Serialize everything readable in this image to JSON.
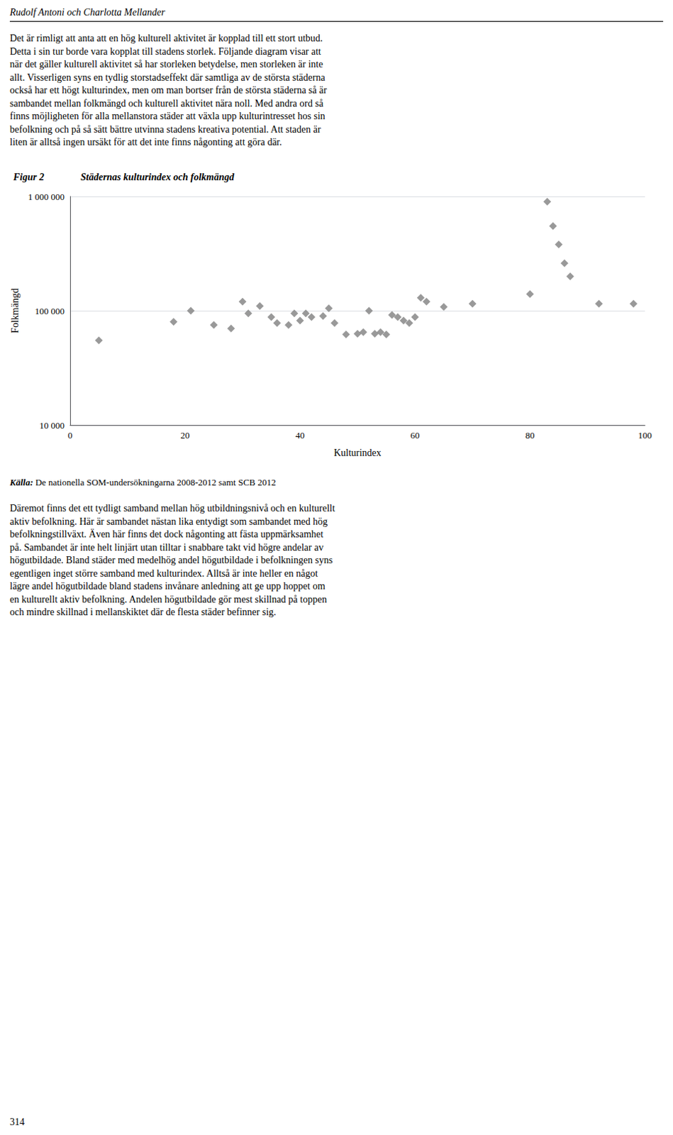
{
  "header": "Rudolf Antoni och Charlotta Mellander",
  "top_text": [
    "Det är rimligt att anta att en hög kulturell aktivitet är kopplad till ett stort utbud.",
    "Detta i sin tur borde vara kopplat till stadens storlek. Följande diagram visar att",
    "när det gäller kulturell aktivitet så har storleken betydelse, men storleken är inte",
    "allt. Visserligen syns en tydlig storstadseffekt där samtliga av de största städerna",
    "också har ett högt kulturindex, men om man bortser från de största städerna så är",
    "sambandet mellan folkmängd och kulturell aktivitet nära noll. Med andra ord så",
    "finns möjligheten för alla mellanstora städer att växla upp kulturintresset hos sin",
    "befolkning och på så sätt bättre utvinna stadens kreativa potential. Att staden är",
    "liten är alltså ingen ursäkt för att det inte finns någonting att göra där."
  ],
  "source_label": "Källa:",
  "source": "De nationella SOM-undersökningarna 2008-2012 samt SCB 2012",
  "bottom_text": [
    "Däremot finns det ett tydligt samband mellan hög utbildningsnivå och en kulturellt",
    "aktiv befolkning. Här är sambandet nästan lika entydigt som sambandet med hög",
    "befolkningstillväxt. Även här finns det dock någonting att fästa uppmärksamhet",
    "på. Sambandet är inte helt linjärt utan tilltar i snabbare takt vid högre andelar av",
    "högutbildade. Bland städer med medelhög andel högutbildade i befolkningen syns",
    "egentligen inget större samband med kulturindex. Alltså är inte heller en något",
    "lägre andel högutbildade bland stadens invånare anledning att ge upp hoppet om",
    "en kulturellt aktiv befolkning. Andelen högutbildade gör mest skillnad på toppen",
    "och mindre skillnad i mellanskiktet där de flesta städer befinner sig."
  ],
  "page_number": "314",
  "chart_data": {
    "type": "scatter",
    "figure_label": "Figur 2",
    "title": "Städernas kulturindex och folkmängd",
    "xlabel": "Kulturindex",
    "ylabel": "Folkmängd",
    "x": [
      5,
      18,
      21,
      25,
      28,
      30,
      31,
      33,
      35,
      36,
      38,
      39,
      40,
      41,
      42,
      44,
      45,
      46,
      48,
      50,
      51,
      52,
      53,
      54,
      55,
      56,
      57,
      58,
      59,
      60,
      61,
      62,
      65,
      70,
      80,
      83,
      84,
      85,
      86,
      87,
      92,
      98
    ],
    "values": [
      55000,
      80000,
      100000,
      75000,
      70000,
      120000,
      95000,
      110000,
      88000,
      78000,
      75000,
      95000,
      82000,
      95000,
      88000,
      90000,
      105000,
      78000,
      62000,
      63000,
      65000,
      100000,
      63000,
      65000,
      62000,
      92000,
      88000,
      82000,
      78000,
      88000,
      130000,
      120000,
      108000,
      115000,
      140000,
      900000,
      550000,
      380000,
      260000,
      200000,
      115000,
      115000
    ],
    "color": "#808080",
    "marker": "diamond",
    "xlim": [
      0,
      100
    ],
    "xticks": [
      0,
      20,
      40,
      60,
      80,
      100
    ],
    "ylim": [
      10000,
      1000000
    ],
    "yticks": [
      {
        "value": 10000,
        "label": "10 000"
      },
      {
        "value": 100000,
        "label": "100 000"
      },
      {
        "value": 1000000,
        "label": "1 000 000"
      }
    ],
    "log": "y",
    "grid": true
  }
}
